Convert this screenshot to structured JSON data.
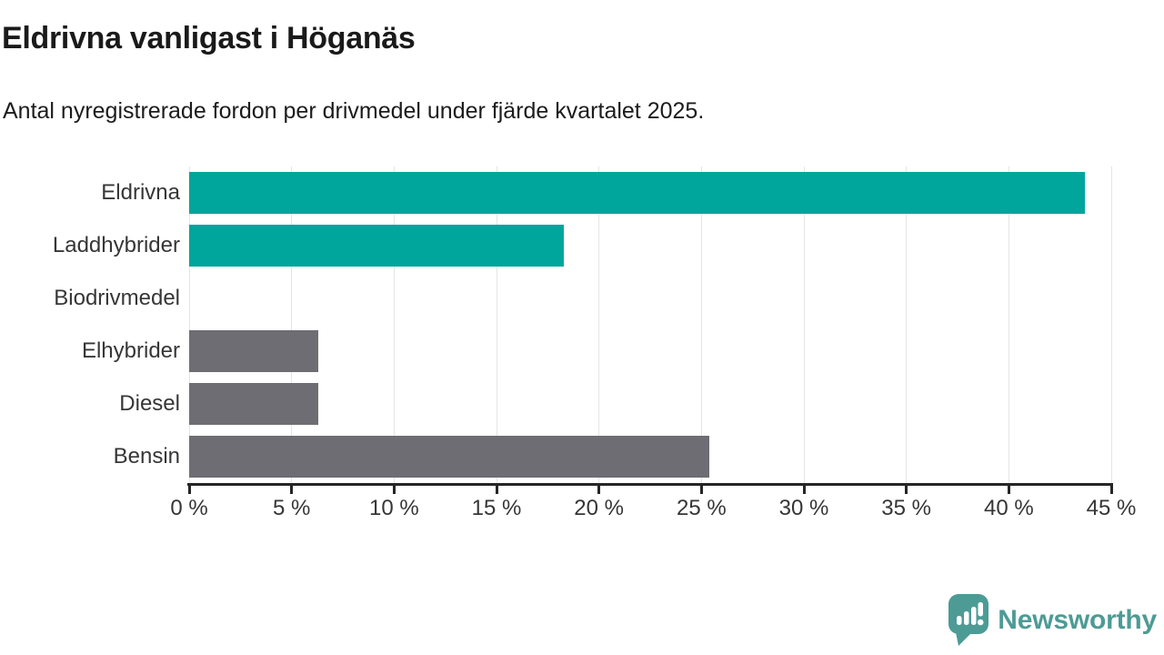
{
  "header": {
    "title": "Eldrivna vanligast i Höganäs",
    "subtitle": "Antal nyregistrerade fordon per drivmedel under fjärde kvartalet 2025."
  },
  "chart_data": {
    "type": "bar",
    "orientation": "horizontal",
    "title": "Eldrivna vanligast i Höganäs",
    "subtitle": "Antal nyregistrerade fordon per drivmedel under fjärde kvartalet 2025.",
    "categories": [
      "Eldrivna",
      "Laddhybrider",
      "Biodrivmedel",
      "Elhybrider",
      "Diesel",
      "Bensin"
    ],
    "values": [
      43.7,
      18.3,
      0,
      6.3,
      6.3,
      25.4
    ],
    "unit": "%",
    "xlabel": "",
    "ylabel": "",
    "xlim": [
      0,
      45
    ],
    "x_ticks": [
      0,
      5,
      10,
      15,
      20,
      25,
      30,
      35,
      40,
      45
    ],
    "x_tick_labels": [
      "0 %",
      "5 %",
      "10 %",
      "15 %",
      "20 %",
      "25 %",
      "30 %",
      "35 %",
      "40 %",
      "45 %"
    ],
    "grid": true,
    "legend": false,
    "bar_colors": [
      "#00a59b",
      "#00a59b",
      "#6e6d73",
      "#6e6d73",
      "#6e6d73",
      "#6e6d73"
    ]
  },
  "colors": {
    "accent_teal": "#00a59b",
    "muted_gray": "#6e6d73",
    "gridline": "#e5e5e6",
    "axis": "#262626",
    "brand_teal": "#4d9b95"
  },
  "footer": {
    "brand": "Newsworthy",
    "logo_icon": "newsworthy-bubble-bar-chart-icon"
  }
}
